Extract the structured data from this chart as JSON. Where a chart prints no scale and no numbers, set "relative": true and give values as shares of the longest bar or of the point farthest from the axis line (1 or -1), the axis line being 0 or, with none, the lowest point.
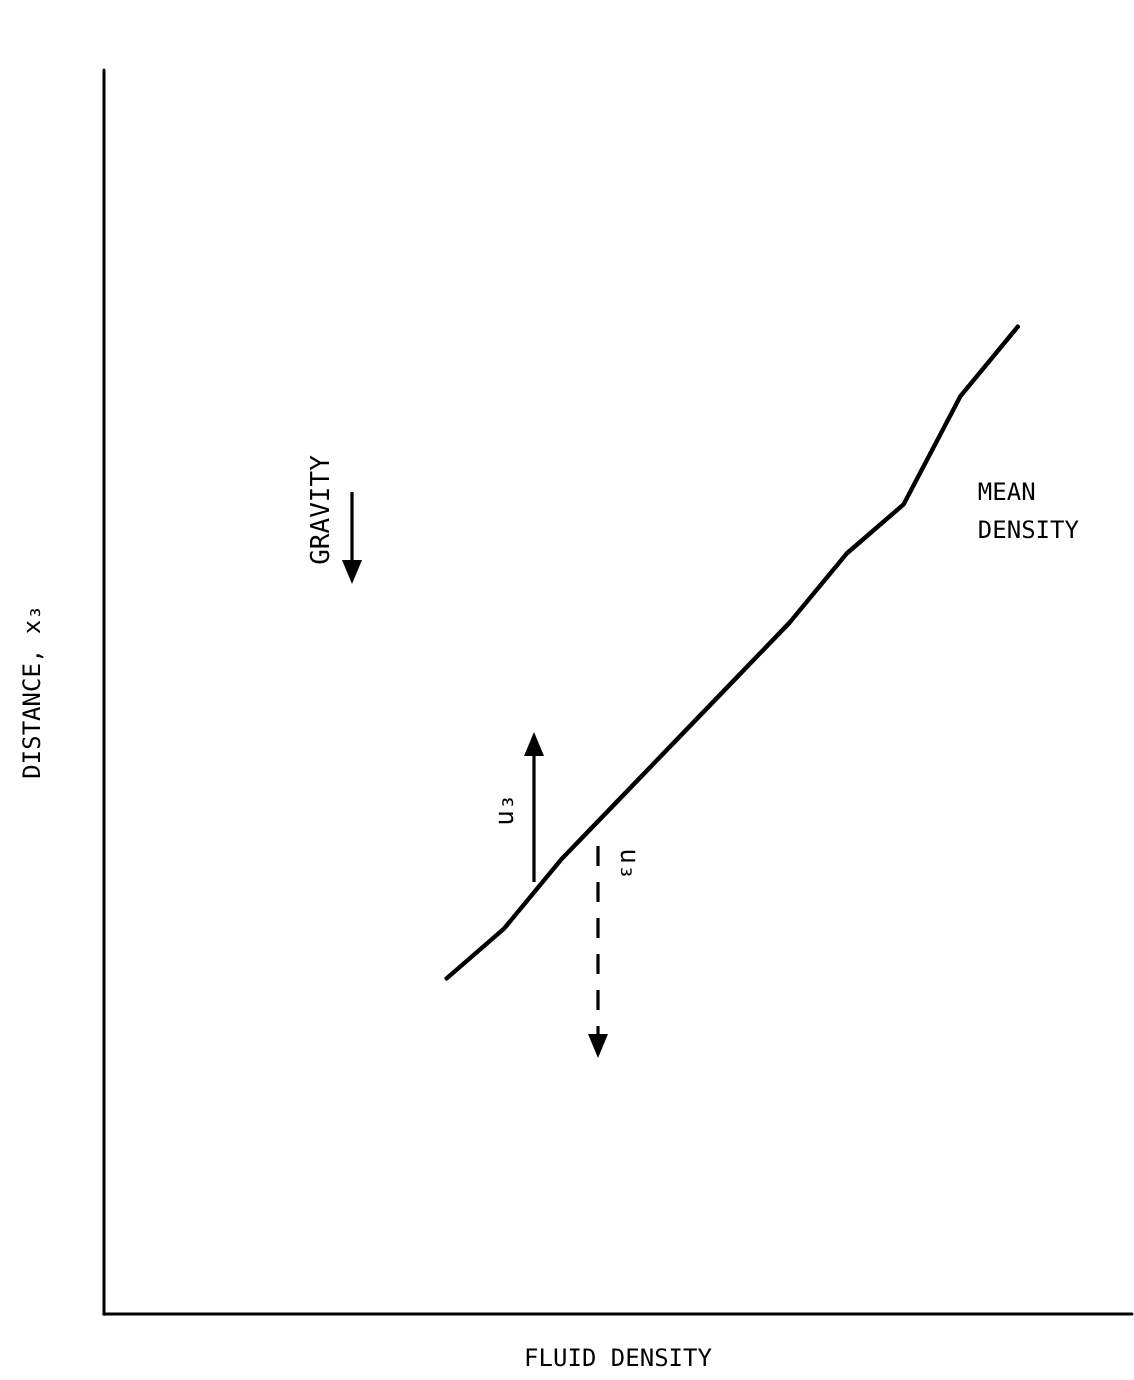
{
  "chart_data": {
    "type": "line",
    "relative": true,
    "xlabel": "FLUID DENSITY",
    "ylabel": "DISTANCE, x₃",
    "categories": [
      null,
      null,
      null,
      null,
      null,
      null,
      null,
      null,
      null,
      null,
      null,
      null,
      null,
      null,
      null,
      null,
      null,
      null,
      null
    ],
    "series": [
      {
        "name": "MEAN DENSITY",
        "color": "#000000",
        "values": [
          null,
          null,
          null,
          null,
          null,
          null,
          0.34,
          0.39,
          0.46,
          0.52,
          0.58,
          0.64,
          0.7,
          0.77,
          0.82,
          0.93,
          1,
          null,
          null
        ]
      }
    ],
    "annotations": [
      "GRAVITY",
      "u₃",
      "u₃"
    ],
    "grid": false,
    "legend": false,
    "marker": "none",
    "line_style": "solid",
    "tick_labels": false
  }
}
